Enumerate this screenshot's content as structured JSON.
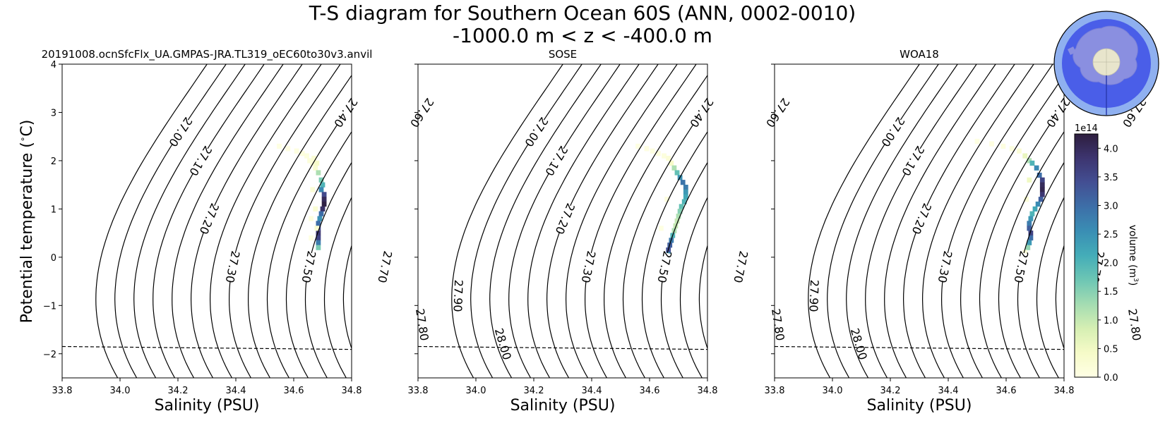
{
  "figure": {
    "title_line1": "T-S diagram for Southern Ocean 60S (ANN, 0002-0010)",
    "title_line2": "-1000.0 m < z < -400.0 m",
    "colors": {
      "contour": "#000000",
      "freezing_line": "#000000",
      "colormap": [
        "#ffffe5",
        "#f6fbc8",
        "#d6efb3",
        "#a4dcb2",
        "#6dc6b4",
        "#44adb8",
        "#3a8eb4",
        "#3d6fa8",
        "#434f93",
        "#3d3570",
        "#2d1e3e"
      ],
      "inset_ocean": "#4a5ee8",
      "inset_ring": "#8fb0f0",
      "inset_land": "#8a8fe0",
      "inset_pole": "#e8e5cc"
    },
    "icons": {
      "inset_map": "antarctica-map-icon"
    }
  },
  "chart_data": [
    {
      "type": "heatmap",
      "title": "20191008.ocnSfcFlx_UA.GMPAS-JRA.TL319_oEC60to30v3.anvil",
      "xlabel": "Salinity (PSU)",
      "ylabel": "Potential temperature ($^\\circ$C)",
      "xlim": [
        33.8,
        34.8
      ],
      "ylim": [
        -2.5,
        4.0
      ],
      "xticks": [
        "33.8",
        "34.0",
        "34.2",
        "34.4",
        "34.6",
        "34.8"
      ],
      "yticks": [
        "−2",
        "−1",
        "0",
        "1",
        "2",
        "3",
        "4"
      ],
      "cells": [
        [
          34.55,
          2.3,
          0.04
        ],
        [
          34.58,
          2.25,
          0.06
        ],
        [
          34.61,
          2.2,
          0.08
        ],
        [
          34.63,
          2.15,
          0.1
        ],
        [
          34.645,
          2.1,
          0.12
        ],
        [
          34.655,
          2.0,
          0.15
        ],
        [
          34.665,
          1.95,
          0.2
        ],
        [
          34.675,
          1.85,
          0.3
        ],
        [
          34.685,
          1.75,
          1.2
        ],
        [
          34.695,
          1.6,
          1.6
        ],
        [
          34.7,
          1.5,
          2.0
        ],
        [
          34.695,
          1.4,
          2.6
        ],
        [
          34.705,
          1.3,
          3.5
        ],
        [
          34.705,
          1.2,
          4.0
        ],
        [
          34.705,
          1.1,
          4.2
        ],
        [
          34.7,
          1.0,
          3.9
        ],
        [
          34.695,
          0.9,
          3.0
        ],
        [
          34.69,
          0.8,
          2.5
        ],
        [
          34.685,
          0.7,
          3.0
        ],
        [
          34.685,
          0.6,
          3.5
        ],
        [
          34.685,
          0.5,
          3.8
        ],
        [
          34.685,
          0.4,
          3.6
        ],
        [
          34.685,
          0.3,
          2.8
        ],
        [
          34.685,
          0.2,
          1.6
        ],
        [
          34.68,
          0.6,
          0.3
        ],
        [
          34.675,
          1.0,
          0.25
        ],
        [
          34.665,
          1.4,
          0.2
        ],
        [
          34.66,
          0.8,
          0.1
        ],
        [
          34.66,
          0.4,
          0.05
        ],
        [
          34.67,
          2.05,
          0.25
        ],
        [
          34.68,
          1.95,
          0.4
        ]
      ]
    },
    {
      "type": "heatmap",
      "title": "SOSE",
      "xlabel": "Salinity (PSU)",
      "xlim": [
        33.8,
        34.8
      ],
      "ylim": [
        -2.5,
        4.0
      ],
      "xticks": [
        "33.8",
        "34.0",
        "34.2",
        "34.4",
        "34.6",
        "34.8"
      ],
      "cells": [
        [
          34.56,
          2.3,
          0.04
        ],
        [
          34.59,
          2.25,
          0.06
        ],
        [
          34.61,
          2.2,
          0.08
        ],
        [
          34.63,
          2.15,
          0.1
        ],
        [
          34.65,
          2.1,
          0.12
        ],
        [
          34.665,
          2.05,
          0.2
        ],
        [
          34.675,
          1.95,
          0.4
        ],
        [
          34.685,
          1.85,
          1.2
        ],
        [
          34.695,
          1.75,
          1.8
        ],
        [
          34.705,
          1.65,
          2.5
        ],
        [
          34.715,
          1.55,
          2.9
        ],
        [
          34.725,
          1.45,
          2.8
        ],
        [
          34.725,
          1.35,
          2.4
        ],
        [
          34.725,
          1.25,
          2.2
        ],
        [
          34.72,
          1.15,
          2.0
        ],
        [
          34.71,
          1.05,
          1.8
        ],
        [
          34.705,
          0.95,
          1.5
        ],
        [
          34.7,
          0.85,
          1.2
        ],
        [
          34.695,
          0.75,
          1.0
        ],
        [
          34.69,
          0.65,
          1.0
        ],
        [
          34.685,
          0.55,
          1.2
        ],
        [
          34.68,
          0.45,
          2.0
        ],
        [
          34.675,
          0.35,
          2.8
        ],
        [
          34.67,
          0.25,
          3.2
        ],
        [
          34.665,
          0.15,
          3.4
        ],
        [
          34.665,
          0.05,
          2.4
        ],
        [
          34.66,
          1.2,
          0.1
        ],
        [
          34.64,
          0.6,
          0.05
        ]
      ]
    },
    {
      "type": "heatmap",
      "title": "WOA18",
      "xlabel": "Salinity (PSU)",
      "xlim": [
        33.8,
        34.8
      ],
      "ylim": [
        -2.5,
        4.0
      ],
      "xticks": [
        "33.8",
        "34.0",
        "34.2",
        "34.4",
        "34.6",
        "34.8"
      ],
      "cells": [
        [
          34.5,
          2.4,
          0.04
        ],
        [
          34.55,
          2.35,
          0.06
        ],
        [
          34.59,
          2.3,
          0.08
        ],
        [
          34.62,
          2.25,
          0.12
        ],
        [
          34.645,
          2.2,
          0.2
        ],
        [
          34.665,
          2.1,
          0.6
        ],
        [
          34.68,
          2.0,
          1.2
        ],
        [
          34.69,
          1.95,
          2.0
        ],
        [
          34.705,
          1.85,
          2.6
        ],
        [
          34.715,
          1.7,
          3.0
        ],
        [
          34.725,
          1.6,
          3.6
        ],
        [
          34.725,
          1.5,
          4.0
        ],
        [
          34.725,
          1.4,
          4.1
        ],
        [
          34.725,
          1.3,
          3.8
        ],
        [
          34.72,
          1.2,
          3.2
        ],
        [
          34.71,
          1.1,
          2.6
        ],
        [
          34.7,
          1.0,
          2.2
        ],
        [
          34.69,
          0.9,
          2.0
        ],
        [
          34.685,
          0.8,
          2.4
        ],
        [
          34.68,
          0.7,
          2.8
        ],
        [
          34.68,
          0.6,
          3.2
        ],
        [
          34.685,
          0.5,
          3.6
        ],
        [
          34.685,
          0.4,
          3.0
        ],
        [
          34.68,
          0.3,
          2.4
        ],
        [
          34.675,
          0.2,
          1.4
        ],
        [
          34.68,
          1.6,
          0.5
        ],
        [
          34.67,
          1.2,
          0.2
        ],
        [
          34.665,
          0.1,
          0.2
        ]
      ]
    }
  ],
  "density_contours": {
    "levels": [
      27.0,
      27.1,
      27.2,
      27.3,
      27.4,
      27.5,
      27.6,
      27.7,
      27.8,
      27.9,
      28.0
    ],
    "labels": [
      "27.00",
      "27.10",
      "27.20",
      "27.30",
      "27.40",
      "27.50",
      "27.60",
      "27.70",
      "27.80",
      "27.90",
      "28.00"
    ],
    "label_temperatures": [
      2.6,
      2.0,
      0.8,
      -0.2,
      3.0,
      -0.2,
      3.0,
      -0.2,
      -1.4,
      -0.8,
      -1.8
    ],
    "unlabeled_levels": [
      26.95,
      27.05,
      27.15,
      27.25,
      27.35,
      27.45,
      27.55,
      27.65,
      27.75,
      27.85,
      27.95,
      28.05
    ]
  },
  "freezing_line": {
    "s": [
      33.8,
      34.8
    ],
    "t": [
      -1.85,
      -1.91
    ]
  },
  "colorbar": {
    "label": "volume (m$^3$)",
    "label_main": "volume (m",
    "label_sup": "3",
    "label_tail": ")",
    "exponent": "1e14",
    "min": 0.0,
    "max": 4.25,
    "ticks": [
      "0.0",
      "0.5",
      "1.0",
      "1.5",
      "2.0",
      "2.5",
      "3.0",
      "3.5",
      "4.0"
    ]
  }
}
